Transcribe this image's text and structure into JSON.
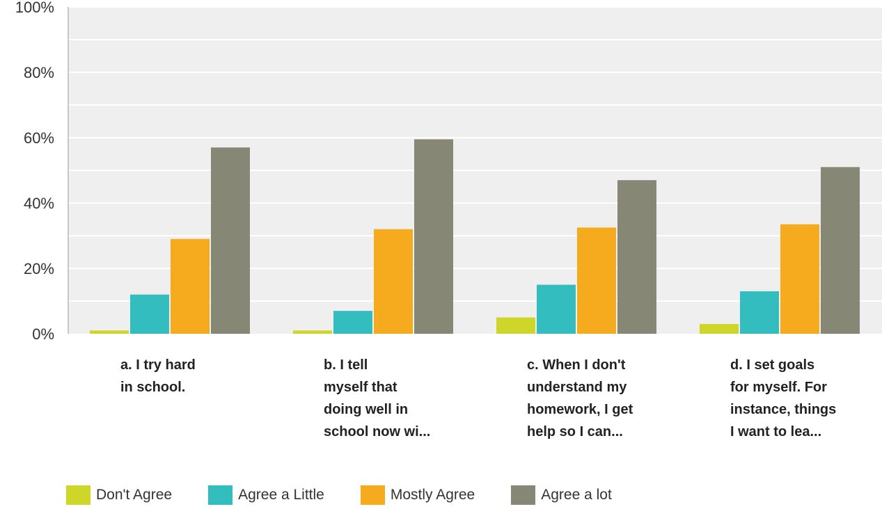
{
  "chart_data": {
    "type": "bar",
    "title": "",
    "xlabel": "",
    "ylabel": "",
    "ylim": [
      0,
      100
    ],
    "yticks": [
      "0%",
      "20%",
      "40%",
      "60%",
      "80%",
      "100%"
    ],
    "grid": true,
    "legend_position": "bottom",
    "categories": [
      [
        "a. I try hard",
        "in school."
      ],
      [
        "b. I tell",
        "myself that",
        "doing well in",
        "school now wi..."
      ],
      [
        "c. When I don't",
        "understand my",
        "homework, I get",
        "help so I can..."
      ],
      [
        "d. I set goals",
        "for myself. For",
        "instance, things",
        "I want to lea..."
      ]
    ],
    "series": [
      {
        "name": "Don't Agree",
        "color": "#cfd62a",
        "values": [
          1,
          1,
          5,
          3
        ]
      },
      {
        "name": "Agree a Little",
        "color": "#33bdbf",
        "values": [
          12,
          7,
          15,
          13
        ]
      },
      {
        "name": "Mostly Agree",
        "color": "#f6ab1e",
        "values": [
          29,
          32,
          32.5,
          33.5
        ]
      },
      {
        "name": "Agree a lot",
        "color": "#878776",
        "values": [
          57,
          59.5,
          47,
          51
        ]
      }
    ]
  }
}
